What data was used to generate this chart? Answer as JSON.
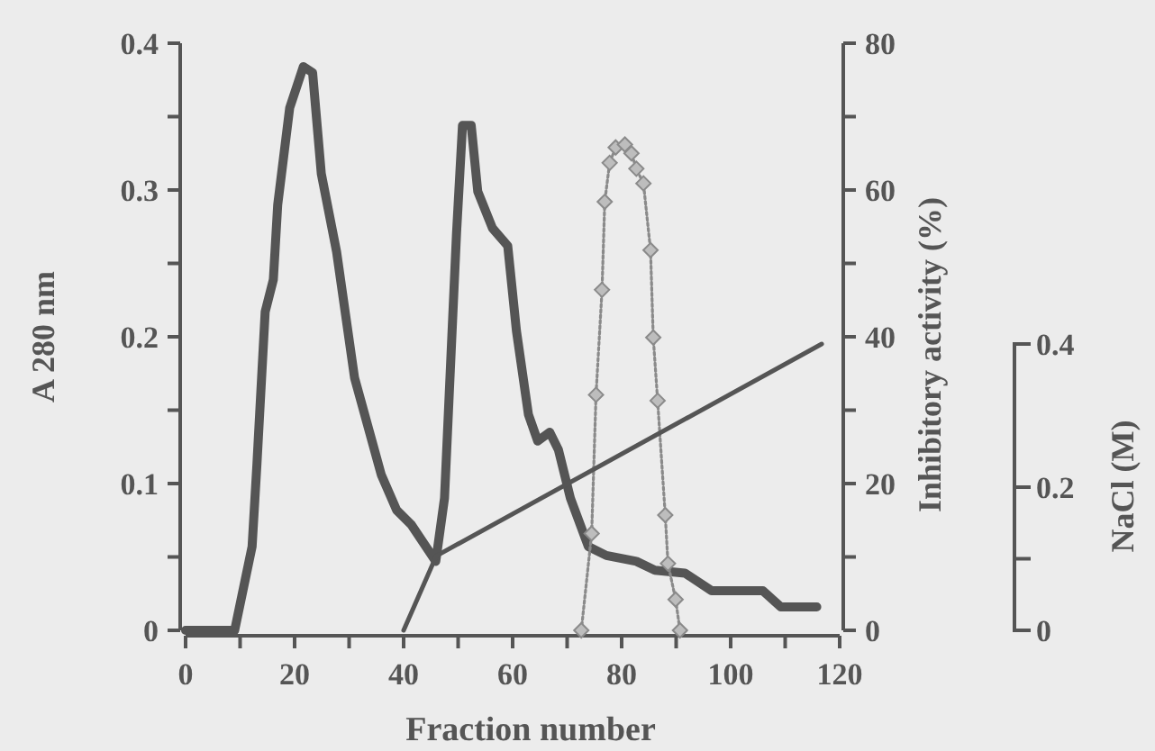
{
  "chart_data": {
    "type": "line",
    "xlabel": "Fraction number",
    "ylabel": "A 280 nm",
    "y2label": "Inhibitory activity (%)",
    "y3label": "NaCl (M)",
    "xlim": [
      0,
      120
    ],
    "xticks": [
      0,
      {
        "value": 10,
        "label": null
      },
      20,
      {
        "value": 30,
        "label": null
      },
      40,
      {
        "value": 50,
        "label": null
      },
      60,
      {
        "value": 70,
        "label": null
      },
      80,
      {
        "value": 90,
        "label": null
      },
      100,
      {
        "value": 110,
        "label": null
      },
      120
    ],
    "ylim": [
      0,
      0.4
    ],
    "yticks": [
      0,
      {
        "value": 0.05,
        "label": null
      },
      0.1,
      {
        "value": 0.15,
        "label": null
      },
      0.2,
      {
        "value": 0.25,
        "label": null
      },
      0.3,
      {
        "value": 0.35,
        "label": null
      },
      0.4
    ],
    "y2lim": [
      0,
      80
    ],
    "y2ticks": [
      0,
      {
        "value": 10,
        "label": null
      },
      20,
      {
        "value": 30,
        "label": null
      },
      40,
      {
        "value": 50,
        "label": null
      },
      60,
      {
        "value": 70,
        "label": null
      },
      80
    ],
    "y3lim": [
      0,
      0.4
    ],
    "y3ticks": [
      0,
      {
        "value": 0.1,
        "label": null
      },
      0.2,
      0.4
    ],
    "series": [
      {
        "color": "#555555",
        "line_style": "solid",
        "marker": "none",
        "x": [
          0,
          9,
          12.2,
          13.1,
          14.6,
          16.1,
          16.9,
          19.1,
          21.6,
          23.3,
          24.9,
          27.7,
          31.0,
          35.9,
          38.7,
          41.4,
          45.9,
          47.5,
          49.7,
          50.8,
          52.4,
          53.6,
          56.3,
          59.1,
          60.7,
          62.9,
          64.6,
          66.8,
          68.4,
          70.6,
          73.9,
          77.2,
          82.7,
          86.1,
          91.6,
          96.5,
          105.9,
          109.2,
          115.8
        ],
        "values": [
          0,
          0,
          0.057,
          0.114,
          0.217,
          0.239,
          0.29,
          0.356,
          0.384,
          0.38,
          0.311,
          0.258,
          0.172,
          0.106,
          0.082,
          0.072,
          0.047,
          0.09,
          0.27,
          0.344,
          0.344,
          0.299,
          0.274,
          0.262,
          0.204,
          0.147,
          0.129,
          0.135,
          0.123,
          0.09,
          0.057,
          0.051,
          0.047,
          0.041,
          0.039,
          0.027,
          0.027,
          0.016,
          0.016
        ]
      },
      {
        "color": "#8a8a8a",
        "axis": "y2",
        "line_style": "dotted",
        "marker": "diamond",
        "x": [
          72.6,
          74.5,
          75.3,
          76.4,
          76.9,
          77.8,
          78.9,
          80.6,
          81.8,
          82.7,
          84.0,
          85.3,
          85.8,
          86.6,
          88.0,
          88.5,
          89.9,
          90.7
        ],
        "values": [
          0,
          13.2,
          32.1,
          46.4,
          58.4,
          63.7,
          65.8,
          66.2,
          65.0,
          62.9,
          60.9,
          51.8,
          39.9,
          31.3,
          15.7,
          9.1,
          4.2,
          0
        ]
      },
      {
        "color": "#555555",
        "axis": "y3",
        "line_style": "solid",
        "marker": "none",
        "x": [
          40,
          46,
          116.7
        ],
        "values": [
          0,
          0.104,
          0.4
        ]
      }
    ]
  }
}
